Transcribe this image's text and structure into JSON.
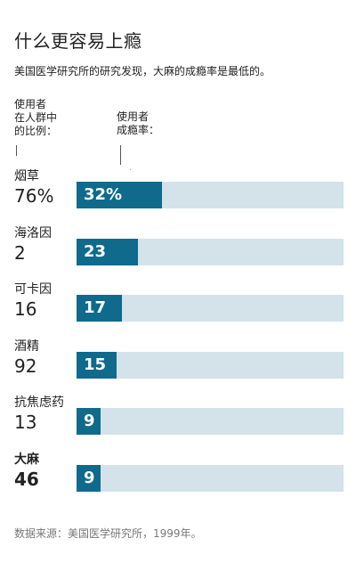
{
  "title": "什么更容易上瘾",
  "subtitle": "美国医学研究所的研究发现，大麻的成瘾率是最低的。",
  "headers": {
    "share": "使用者\n在人群中\n的比例：",
    "rate": "使用者\n成瘾率："
  },
  "footnote": "数据来源：美国医学研究所，1999年。",
  "colors": {
    "bar": "#0f6a8c",
    "track": "#d4e2ea"
  },
  "chart_data": {
    "type": "bar",
    "categories": [
      "烟草",
      "海洛因",
      "可卡因",
      "酒精",
      "抗焦虑药",
      "大麻"
    ],
    "user_share_percent": [
      "76%",
      "2",
      "16",
      "92",
      "13",
      "46"
    ],
    "series": [
      {
        "values": [
          32,
          23,
          17,
          15,
          9,
          9
        ],
        "labels": [
          "32%",
          "23",
          "17",
          "15",
          "9",
          "9"
        ]
      }
    ],
    "xlim": [
      0,
      100
    ]
  }
}
